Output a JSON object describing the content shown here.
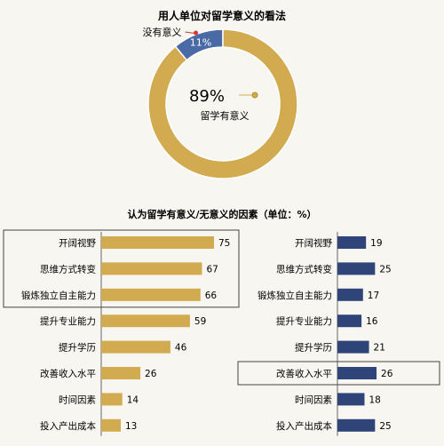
{
  "chart_data": [
    {
      "type": "pie",
      "title": "用人单位对留学意义的看法",
      "slices": [
        {
          "label": "没有意义",
          "value": 11,
          "display": "11%",
          "color": "#4a6aa6"
        },
        {
          "label": "留学有意义",
          "value": 89,
          "display": "89%",
          "color": "#d2ab50"
        }
      ]
    },
    {
      "type": "bar",
      "orientation": "horizontal",
      "title": "认为留学有意义/无意义的因素（单位：%）",
      "categories": [
        "开阔视野",
        "思维方式转变",
        "锻炼独立自主能力",
        "提升专业能力",
        "提升学历",
        "改善收入水平",
        "时间因素",
        "投入产出成本"
      ],
      "series": [
        {
          "values": [
            75,
            67,
            66,
            59,
            46,
            26,
            14,
            13
          ],
          "color": "#d2ab50",
          "highlighted": [
            0,
            1,
            2
          ]
        },
        {
          "values": [
            19,
            25,
            17,
            16,
            21,
            26,
            18,
            25
          ],
          "color": "#2f4579",
          "highlighted": [
            5
          ]
        }
      ],
      "xlim": [
        0,
        75
      ]
    }
  ]
}
